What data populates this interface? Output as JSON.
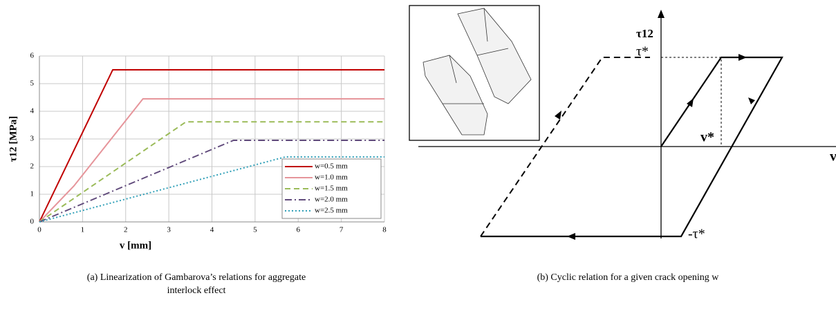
{
  "chart_data": {
    "type": "line",
    "x_label": "v [mm]",
    "y_label": "τ12 [MPa]",
    "xlim": [
      0,
      8
    ],
    "ylim": [
      0,
      6
    ],
    "xticks": [
      0,
      1,
      2,
      3,
      4,
      5,
      6,
      7,
      8
    ],
    "yticks": [
      0,
      1,
      2,
      3,
      4,
      5,
      6
    ],
    "grid": true,
    "legend": "lower right",
    "series": [
      {
        "name": "w=0.5 mm",
        "color": "#c00000",
        "dash": "solid",
        "x": [
          0,
          1.7,
          8
        ],
        "values": [
          0,
          5.5,
          5.5
        ]
      },
      {
        "name": "w=1.0 mm",
        "color": "#e6959b",
        "dash": "solid",
        "x": [
          0,
          0.8,
          2.4,
          8
        ],
        "values": [
          0,
          1.3,
          4.45,
          4.45
        ]
      },
      {
        "name": "w=1.5 mm",
        "color": "#9bbb59",
        "dash": "dashed",
        "x": [
          0,
          3.4,
          8
        ],
        "values": [
          0,
          3.62,
          3.62
        ]
      },
      {
        "name": "w=2.0 mm",
        "color": "#604a7b",
        "dash": "dashdot",
        "x": [
          0,
          4.5,
          8
        ],
        "values": [
          0,
          2.95,
          2.95
        ]
      },
      {
        "name": "w=2.5 mm",
        "color": "#31a0b8",
        "dash": "dotted",
        "x": [
          0,
          5.7,
          8
        ],
        "values": [
          0,
          2.35,
          2.35
        ]
      }
    ]
  },
  "diagram": {
    "tau_label": "τ12",
    "tau_star": "τ*",
    "v_star": "v*",
    "neg_tau_star": "-τ*",
    "v_label": "v"
  },
  "captions": [
    "(a) Linearization of Gambarova’s relations for aggregate",
    "interlock effect",
    "(b) Cyclic relation for a given crack opening w"
  ]
}
